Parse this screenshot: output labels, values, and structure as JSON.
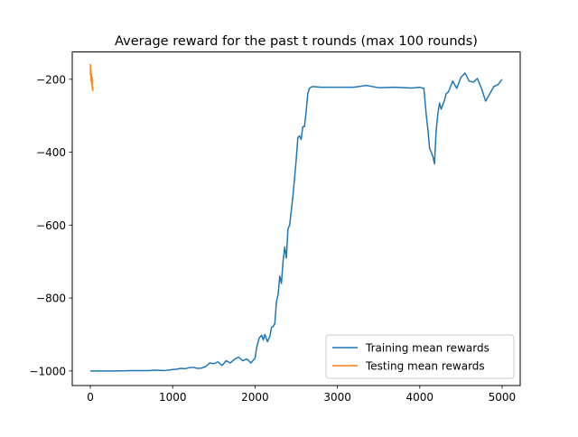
{
  "chart_data": {
    "type": "line",
    "title": "Average reward for the past t rounds (max 100 rounds)",
    "xlabel": "",
    "ylabel": "",
    "xlim": [
      -220,
      5220
    ],
    "ylim": [
      -1040,
      -125
    ],
    "x_ticks": [
      0,
      1000,
      2000,
      3000,
      4000,
      5000
    ],
    "x_tick_labels": [
      "0",
      "1000",
      "2000",
      "3000",
      "4000",
      "5000"
    ],
    "y_ticks": [
      -1000,
      -800,
      -600,
      -400,
      -200
    ],
    "y_tick_labels": [
      "−1000",
      "−800",
      "−600",
      "−400",
      "−200"
    ],
    "grid": false,
    "legend_position": "lower-right",
    "series": [
      {
        "name": "Training mean rewards",
        "color": "#1f77b4",
        "x": [
          0,
          100,
          300,
          500,
          700,
          800,
          900,
          1000,
          1050,
          1100,
          1150,
          1200,
          1250,
          1300,
          1350,
          1400,
          1450,
          1500,
          1550,
          1600,
          1650,
          1700,
          1750,
          1800,
          1850,
          1900,
          1950,
          2000,
          2020,
          2050,
          2080,
          2100,
          2120,
          2150,
          2180,
          2200,
          2220,
          2240,
          2260,
          2280,
          2300,
          2320,
          2340,
          2360,
          2380,
          2400,
          2420,
          2440,
          2460,
          2480,
          2500,
          2520,
          2540,
          2560,
          2580,
          2600,
          2620,
          2640,
          2660,
          2680,
          2700,
          2800,
          3000,
          3200,
          3350,
          3500,
          3700,
          3900,
          4000,
          4050,
          4080,
          4100,
          4120,
          4140,
          4160,
          4180,
          4190,
          4200,
          4220,
          4240,
          4260,
          4280,
          4300,
          4320,
          4350,
          4400,
          4450,
          4500,
          4550,
          4600,
          4650,
          4700,
          4750,
          4800,
          4850,
          4900,
          4950,
          5000
        ],
        "values": [
          -1000,
          -1000,
          -1000,
          -999,
          -999,
          -998,
          -999,
          -996,
          -995,
          -993,
          -994,
          -991,
          -990,
          -993,
          -992,
          -988,
          -978,
          -980,
          -975,
          -985,
          -972,
          -978,
          -968,
          -962,
          -972,
          -967,
          -978,
          -965,
          -935,
          -910,
          -902,
          -915,
          -900,
          -920,
          -905,
          -880,
          -878,
          -870,
          -810,
          -790,
          -740,
          -760,
          -700,
          -660,
          -690,
          -610,
          -600,
          -560,
          -520,
          -470,
          -420,
          -360,
          -355,
          -365,
          -330,
          -330,
          -290,
          -240,
          -225,
          -222,
          -220,
          -222,
          -222,
          -222,
          -217,
          -223,
          -222,
          -224,
          -222,
          -225,
          -300,
          -340,
          -390,
          -400,
          -412,
          -432,
          -380,
          -340,
          -295,
          -265,
          -282,
          -270,
          -258,
          -240,
          -234,
          -205,
          -225,
          -195,
          -183,
          -205,
          -208,
          -198,
          -225,
          -260,
          -240,
          -220,
          -215,
          -200
        ]
      },
      {
        "name": "Testing mean rewards",
        "color": "#ff7f0e",
        "x": [
          0,
          3,
          6,
          9,
          12,
          15,
          18,
          21,
          24,
          27,
          30
        ],
        "values": [
          -158,
          -190,
          -175,
          -205,
          -185,
          -210,
          -215,
          -195,
          -225,
          -220,
          -232
        ]
      }
    ]
  }
}
